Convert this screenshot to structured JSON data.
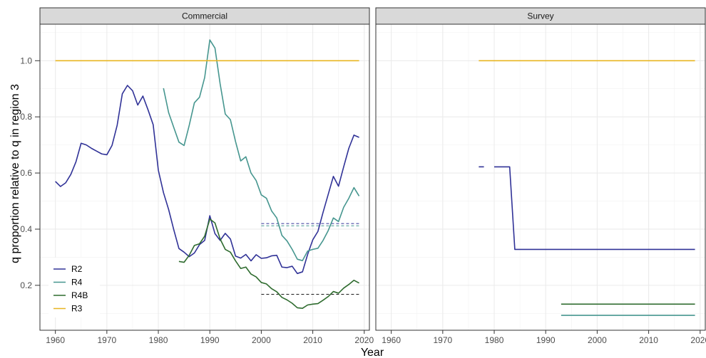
{
  "chart_data": {
    "type": "line",
    "xlabel": "Year",
    "ylabel": "q proportion relative to q in region 3",
    "xlim": [
      1957,
      2021
    ],
    "ylim": [
      0.04,
      1.13
    ],
    "x_ticks": [
      1960,
      1970,
      1980,
      1990,
      2000,
      2010,
      2020
    ],
    "y_ticks": [
      0.2,
      0.4,
      0.6,
      0.8,
      1.0
    ],
    "y_tick_labels": [
      "0.2",
      "0.4",
      "0.6",
      "0.8",
      "1.0"
    ],
    "grid": true,
    "legend_position": "bottom-left",
    "legend": [
      {
        "name": "R2",
        "color": "#303297"
      },
      {
        "name": "R4",
        "color": "#46968f"
      },
      {
        "name": "R4B",
        "color": "#2e6b2e"
      },
      {
        "name": "R3",
        "color": "#e8b521"
      }
    ],
    "panels": [
      {
        "title": "Commercial",
        "series": [
          {
            "name": "R2",
            "color": "#303297",
            "x": [
              1960,
              1961,
              1962,
              1963,
              1964,
              1965,
              1966,
              1967,
              1968,
              1969,
              1970,
              1971,
              1972,
              1973,
              1974,
              1975,
              1976,
              1977,
              1978,
              1979,
              1980,
              1981,
              1982,
              1983,
              1984,
              1985,
              1986,
              1987,
              1988,
              1989,
              1990,
              1991,
              1992,
              1993,
              1994,
              1995,
              1996,
              1997,
              1998,
              1999,
              2000,
              2001,
              2002,
              2003,
              2004,
              2005,
              2006,
              2007,
              2008,
              2009,
              2010,
              2011,
              2012,
              2013,
              2014,
              2015,
              2016,
              2017,
              2018,
              2019
            ],
            "y": [
              0.57,
              0.552,
              0.565,
              0.595,
              0.64,
              0.706,
              0.7,
              0.688,
              0.678,
              0.668,
              0.665,
              0.698,
              0.77,
              0.882,
              0.912,
              0.893,
              0.842,
              0.874,
              0.825,
              0.772,
              0.61,
              0.53,
              0.47,
              0.398,
              0.331,
              0.318,
              0.302,
              0.315,
              0.345,
              0.36,
              0.448,
              0.384,
              0.36,
              0.385,
              0.365,
              0.304,
              0.297,
              0.31,
              0.287,
              0.309,
              0.296,
              0.298,
              0.305,
              0.307,
              0.265,
              0.263,
              0.268,
              0.242,
              0.248,
              0.31,
              0.362,
              0.392,
              0.46,
              0.524,
              0.588,
              0.553,
              0.622,
              0.688,
              0.735,
              0.727
            ]
          },
          {
            "name": "R4",
            "color": "#46968f",
            "x": [
              1981,
              1982,
              1983,
              1984,
              1985,
              1986,
              1987,
              1988,
              1989,
              1990,
              1991,
              1992,
              1993,
              1994,
              1995,
              1996,
              1997,
              1998,
              1999,
              2000,
              2001,
              2002,
              2003,
              2004,
              2005,
              2006,
              2007,
              2008,
              2009,
              2010,
              2011,
              2012,
              2013,
              2014,
              2015,
              2016,
              2017,
              2018,
              2019
            ],
            "y": [
              0.902,
              0.815,
              0.762,
              0.71,
              0.698,
              0.77,
              0.85,
              0.87,
              0.94,
              1.074,
              1.045,
              0.918,
              0.81,
              0.79,
              0.712,
              0.643,
              0.658,
              0.6,
              0.573,
              0.522,
              0.51,
              0.465,
              0.44,
              0.378,
              0.358,
              0.328,
              0.293,
              0.288,
              0.322,
              0.328,
              0.332,
              0.36,
              0.395,
              0.44,
              0.427,
              0.478,
              0.51,
              0.548,
              0.518
            ]
          },
          {
            "name": "R4B",
            "color": "#2e6b2e",
            "x": [
              1984,
              1985,
              1986,
              1987,
              1988,
              1989,
              1990,
              1991,
              1992,
              1993,
              1994,
              1995,
              1996,
              1997,
              1998,
              1999,
              2000,
              2001,
              2002,
              2003,
              2004,
              2005,
              2006,
              2007,
              2008,
              2009,
              2010,
              2011,
              2012,
              2013,
              2014,
              2015,
              2016,
              2017,
              2018,
              2019
            ],
            "y": [
              0.285,
              0.282,
              0.307,
              0.342,
              0.348,
              0.375,
              0.436,
              0.422,
              0.365,
              0.328,
              0.318,
              0.287,
              0.26,
              0.265,
              0.24,
              0.23,
              0.21,
              0.205,
              0.188,
              0.177,
              0.157,
              0.148,
              0.136,
              0.12,
              0.118,
              0.13,
              0.133,
              0.135,
              0.147,
              0.16,
              0.178,
              0.172,
              0.19,
              0.203,
              0.218,
              0.208
            ]
          },
          {
            "name": "R3",
            "color": "#e8b521",
            "x": [
              1960,
              2019
            ],
            "y": [
              1.0,
              1.0
            ]
          }
        ],
        "reference_lines": [
          {
            "name": "R2",
            "color": "#303297",
            "x": [
              2000,
              2019
            ],
            "y": 0.42
          },
          {
            "name": "R4",
            "color": "#46968f",
            "x": [
              2000,
              2019
            ],
            "y": 0.412
          },
          {
            "name": "R4B",
            "color": "#1a1a1a",
            "x": [
              2000,
              2019
            ],
            "y": 0.168
          }
        ]
      },
      {
        "title": "Survey",
        "series": [
          {
            "name": "R2",
            "color": "#303297",
            "x": [
              1977,
              1978
            ],
            "y": [
              0.622,
              0.622
            ]
          },
          {
            "name": "R2",
            "color": "#303297",
            "x": [
              1980,
              1983,
              1984,
              2019
            ],
            "y": [
              0.622,
              0.622,
              0.328,
              0.328
            ]
          },
          {
            "name": "R4",
            "color": "#46968f",
            "x": [
              1993,
              2019
            ],
            "y": [
              0.093,
              0.093
            ]
          },
          {
            "name": "R4B",
            "color": "#2e6b2e",
            "x": [
              1993,
              2019
            ],
            "y": [
              0.133,
              0.133
            ]
          },
          {
            "name": "R3",
            "color": "#e8b521",
            "x": [
              1977,
              2019
            ],
            "y": [
              1.0,
              1.0
            ]
          }
        ],
        "reference_lines": []
      }
    ]
  }
}
